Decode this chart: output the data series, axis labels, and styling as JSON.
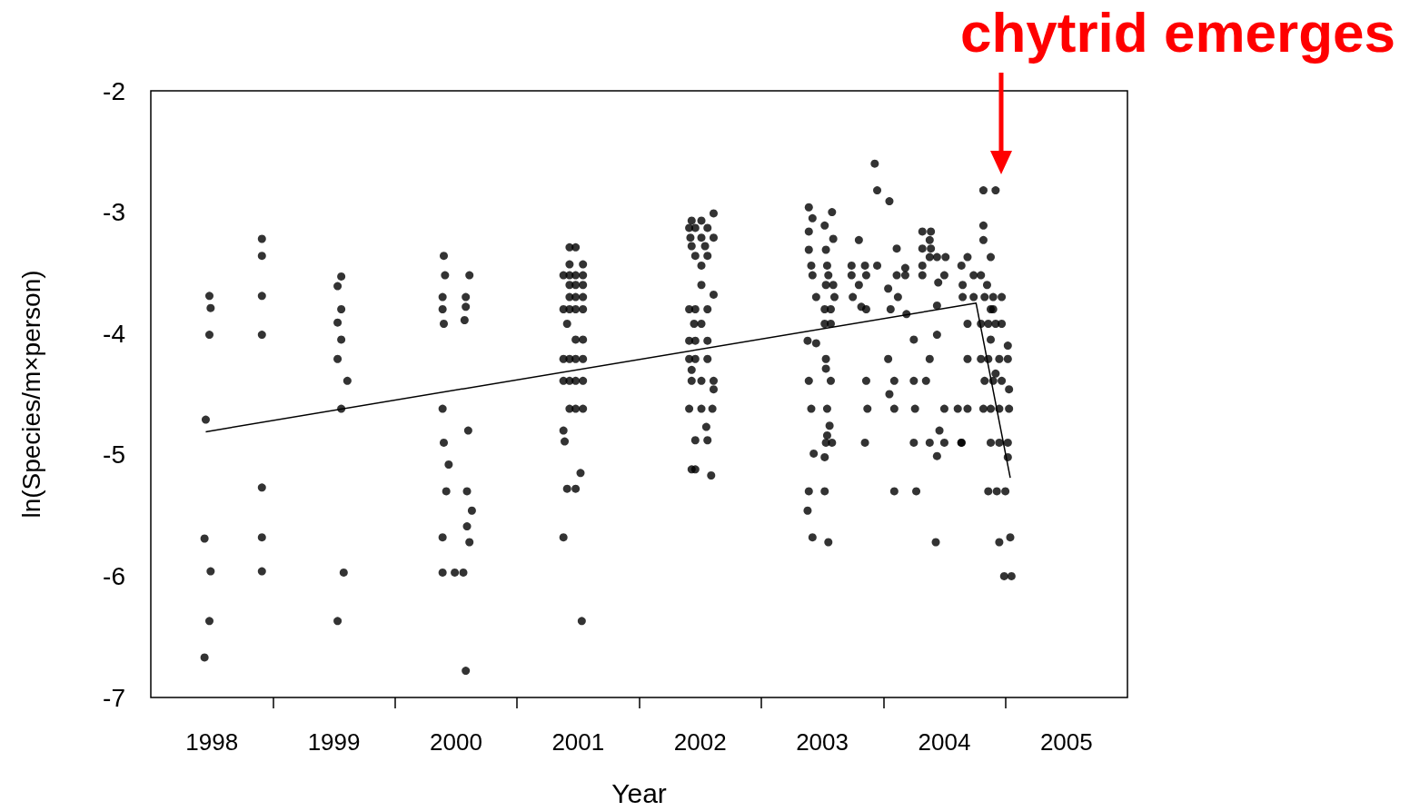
{
  "chart_data": {
    "type": "scatter",
    "xlabel": "Year",
    "ylabel": "ln(Species/m×person)",
    "xlim": [
      1997.5,
      2005.5
    ],
    "xticks": [
      {
        "value": 1998,
        "label": "1998"
      },
      {
        "value": 1998.5,
        "label": null
      },
      {
        "value": 1999,
        "label": "1999"
      },
      {
        "value": 1999.5,
        "label": null
      },
      {
        "value": 2000,
        "label": "2000"
      },
      {
        "value": 2000.5,
        "label": null
      },
      {
        "value": 2001,
        "label": "2001"
      },
      {
        "value": 2001.5,
        "label": null
      },
      {
        "value": 2002,
        "label": "2002"
      },
      {
        "value": 2002.5,
        "label": null
      },
      {
        "value": 2003,
        "label": "2003"
      },
      {
        "value": 2003.5,
        "label": null
      },
      {
        "value": 2004,
        "label": "2004"
      },
      {
        "value": 2004.5,
        "label": null
      },
      {
        "value": 2005,
        "label": "2005"
      }
    ],
    "ylim": [
      -7,
      -2
    ],
    "yticks": [
      -7,
      -6,
      -5,
      -4,
      -3,
      -2
    ],
    "grid": false,
    "marker": "circle",
    "annotations": [
      "chytrid emerges"
    ],
    "series": [
      {
        "color": "#000000",
        "x": [
          1997.95,
          1997.98,
          1997.99,
          1997.98,
          1997.94,
          1997.99,
          1997.98,
          1997.94,
          1998.41,
          1998.41,
          1998.41,
          1998.41,
          1998.41,
          1998.41,
          1998.41,
          1999.06,
          1999.03,
          1999.06,
          1999.03,
          1999.06,
          1999.03,
          1999.11,
          1999.06,
          1999.08,
          1999.03,
          1999.9,
          1999.91,
          1999.89,
          1999.89,
          1999.9,
          2000.11,
          2000.08,
          2000.08,
          2000.07,
          1999.89,
          2000.1,
          1999.9,
          1999.94,
          1999.92,
          2000.09,
          2000.13,
          2000.09,
          2000.11,
          1999.89,
          1999.89,
          1999.99,
          2000.06,
          2000.08,
          2000.93,
          2000.98,
          2000.93,
          2001.04,
          2000.88,
          2000.93,
          2000.98,
          2001.04,
          2000.93,
          2000.98,
          2001.04,
          2000.93,
          2000.98,
          2001.04,
          2000.88,
          2000.93,
          2000.98,
          2001.04,
          2000.91,
          2000.98,
          2001.04,
          2000.88,
          2000.93,
          2000.98,
          2001.04,
          2000.88,
          2000.93,
          2000.98,
          2001.04,
          2000.93,
          2000.98,
          2001.04,
          2000.88,
          2000.89,
          2001.02,
          2000.91,
          2000.98,
          2000.88,
          2001.03,
          2002.11,
          2001.93,
          2002.01,
          2001.91,
          2001.96,
          2002.06,
          2001.92,
          2002.01,
          2002.11,
          2001.93,
          2002.04,
          2001.96,
          2002.06,
          2002.01,
          2002.01,
          2002.11,
          2001.91,
          2001.96,
          2002.06,
          2001.95,
          2002.01,
          2001.91,
          2001.96,
          2002.06,
          2001.91,
          2001.96,
          2002.06,
          2001.93,
          2001.93,
          2002.01,
          2002.11,
          2002.11,
          2001.91,
          2002.01,
          2002.1,
          2002.05,
          2001.96,
          2002.06,
          2001.93,
          2001.96,
          2002.09,
          2002.89,
          2002.92,
          2003.08,
          2002.89,
          2003.02,
          2003.09,
          2002.89,
          2003.03,
          2002.91,
          2003.04,
          2002.92,
          2003.05,
          2003.03,
          2003.09,
          2002.95,
          2003.1,
          2003.02,
          2003.07,
          2003.02,
          2003.07,
          2002.88,
          2002.95,
          2003.03,
          2003.03,
          2002.89,
          2003.07,
          2002.91,
          2003.04,
          2003.06,
          2003.04,
          2003.08,
          2003.03,
          2002.93,
          2003.02,
          2002.89,
          2003.02,
          2002.88,
          2002.92,
          2003.05,
          2003.43,
          2003.45,
          2003.55,
          2003.3,
          2003.24,
          2003.35,
          2003.45,
          2003.61,
          2003.68,
          2003.24,
          2003.36,
          2003.61,
          2003.68,
          2003.3,
          2003.54,
          2003.25,
          2003.62,
          2003.32,
          2003.36,
          2003.56,
          2003.69,
          2003.75,
          2003.54,
          2003.36,
          2003.59,
          2003.75,
          2003.85,
          2003.55,
          2003.37,
          2003.59,
          2003.76,
          2004.0,
          2003.35,
          2003.59,
          2003.77,
          2003.82,
          2003.89,
          2003.88,
          2003.82,
          2003.89,
          2003.88,
          2003.94,
          2004.01,
          2003.82,
          2003.82,
          2004.0,
          2003.95,
          2003.94,
          2003.94,
          2003.88,
          2003.96,
          2003.75,
          2003.88,
          2004.0,
          2004.14,
          2003.94,
          2003.93,
          2004.19,
          2004.14,
          2004.24,
          2004.3,
          2004.15,
          2004.15,
          2004.24,
          2004.19,
          2004.19,
          2004.32,
          2004.42,
          2004.32,
          2004.32,
          2004.38,
          2004.35,
          2004.33,
          2004.4,
          2004.47,
          2004.38,
          2004.4,
          2004.3,
          2004.36,
          2004.42,
          2004.47,
          2004.38,
          2004.52,
          2004.3,
          2004.36,
          2004.45,
          2004.52,
          2004.42,
          2004.33,
          2004.4,
          2004.47,
          2004.53,
          2004.32,
          2004.38,
          2004.45,
          2004.53,
          2004.11,
          2004.19,
          2004.14,
          2004.38,
          2004.45,
          2004.52,
          2004.52,
          2004.36,
          2004.43,
          2004.5,
          2004.45,
          2004.54,
          2004.49,
          2004.55
        ],
        "values": [
          -4.71,
          -3.69,
          -3.79,
          -4.01,
          -5.69,
          -5.96,
          -6.37,
          -6.67,
          -3.22,
          -3.36,
          -3.69,
          -4.01,
          -5.27,
          -5.68,
          -5.96,
          -3.53,
          -3.61,
          -3.8,
          -3.91,
          -4.05,
          -4.21,
          -4.39,
          -4.62,
          -5.97,
          -6.37,
          -3.36,
          -3.52,
          -3.7,
          -3.8,
          -3.92,
          -3.52,
          -3.7,
          -3.78,
          -3.89,
          -4.62,
          -4.8,
          -4.9,
          -5.08,
          -5.3,
          -5.3,
          -5.46,
          -5.59,
          -5.72,
          -5.68,
          -5.97,
          -5.97,
          -5.97,
          -6.78,
          -3.29,
          -3.29,
          -3.43,
          -3.43,
          -3.52,
          -3.52,
          -3.52,
          -3.52,
          -3.6,
          -3.6,
          -3.6,
          -3.7,
          -3.7,
          -3.7,
          -3.8,
          -3.8,
          -3.8,
          -3.8,
          -3.92,
          -4.05,
          -4.05,
          -4.21,
          -4.21,
          -4.21,
          -4.21,
          -4.39,
          -4.39,
          -4.39,
          -4.39,
          -4.62,
          -4.62,
          -4.62,
          -4.8,
          -4.89,
          -5.15,
          -5.28,
          -5.28,
          -5.68,
          -6.37,
          -3.01,
          -3.07,
          -3.07,
          -3.13,
          -3.13,
          -3.13,
          -3.21,
          -3.21,
          -3.21,
          -3.28,
          -3.28,
          -3.36,
          -3.36,
          -3.44,
          -3.6,
          -3.68,
          -3.8,
          -3.8,
          -3.8,
          -3.92,
          -3.92,
          -4.06,
          -4.06,
          -4.06,
          -4.21,
          -4.21,
          -4.21,
          -4.3,
          -4.39,
          -4.39,
          -4.39,
          -4.46,
          -4.62,
          -4.62,
          -4.62,
          -4.77,
          -4.88,
          -4.88,
          -5.12,
          -5.12,
          -5.17,
          -2.96,
          -3.05,
          -3.0,
          -3.16,
          -3.11,
          -3.22,
          -3.31,
          -3.31,
          -3.44,
          -3.44,
          -3.52,
          -3.52,
          -3.6,
          -3.6,
          -3.7,
          -3.7,
          -3.8,
          -3.8,
          -3.92,
          -3.92,
          -4.06,
          -4.08,
          -4.21,
          -4.29,
          -4.39,
          -4.39,
          -4.62,
          -4.62,
          -4.76,
          -4.84,
          -4.9,
          -4.9,
          -4.99,
          -5.02,
          -5.3,
          -5.3,
          -5.46,
          -5.68,
          -5.72,
          -2.6,
          -2.82,
          -2.91,
          -3.23,
          -3.44,
          -3.44,
          -3.44,
          -3.3,
          -3.46,
          -3.52,
          -3.52,
          -3.52,
          -3.52,
          -3.6,
          -3.63,
          -3.7,
          -3.7,
          -3.78,
          -3.8,
          -3.8,
          -3.84,
          -4.05,
          -4.21,
          -4.39,
          -4.39,
          -4.39,
          -4.39,
          -4.5,
          -4.62,
          -4.62,
          -4.62,
          -4.62,
          -4.9,
          -5.3,
          -5.3,
          -3.16,
          -3.16,
          -3.23,
          -3.3,
          -3.3,
          -3.37,
          -3.37,
          -3.37,
          -3.44,
          -3.52,
          -3.52,
          -3.58,
          -3.77,
          -4.01,
          -4.21,
          -4.8,
          -4.9,
          -4.9,
          -4.9,
          -4.9,
          -5.01,
          -5.72,
          -3.37,
          -3.44,
          -3.52,
          -3.52,
          -3.6,
          -3.7,
          -3.7,
          -3.92,
          -4.21,
          -2.82,
          -2.82,
          -3.11,
          -3.23,
          -3.37,
          -3.6,
          -3.7,
          -3.7,
          -3.7,
          -3.8,
          -3.8,
          -3.92,
          -3.92,
          -3.92,
          -3.92,
          -4.05,
          -4.1,
          -4.21,
          -4.21,
          -4.21,
          -4.21,
          -4.33,
          -4.39,
          -4.39,
          -4.39,
          -4.46,
          -4.62,
          -4.62,
          -4.62,
          -4.62,
          -4.62,
          -4.62,
          -4.9,
          -4.9,
          -4.9,
          -4.9,
          -5.02,
          -5.3,
          -5.3,
          -5.3,
          -5.72,
          -5.68,
          -6.0,
          -6.0
        ]
      },
      {
        "type": "line",
        "color": "#000000",
        "marker": "none",
        "x": [
          1997.95,
          2004.26,
          2004.54
        ],
        "values": [
          -4.81,
          -3.75,
          -5.19
        ]
      }
    ]
  }
}
